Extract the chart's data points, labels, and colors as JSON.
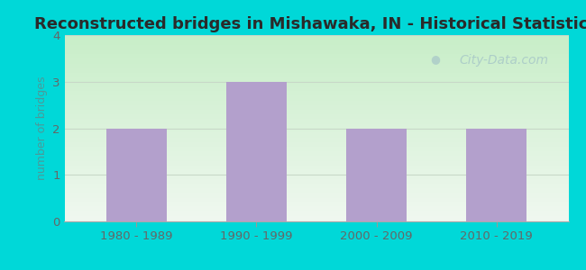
{
  "title": "Reconstructed bridges in Mishawaka, IN - Historical Statistics",
  "categories": [
    "1980 - 1989",
    "1990 - 1999",
    "2000 - 2009",
    "2010 - 2019"
  ],
  "values": [
    2,
    3,
    2,
    2
  ],
  "bar_color": "#b3a0cc",
  "ylabel": "number of bridges",
  "ylim": [
    0,
    4
  ],
  "yticks": [
    0,
    1,
    2,
    3,
    4
  ],
  "background_outer": "#00d8d8",
  "background_top": "#f0f8f0",
  "background_bottom": "#c8eec8",
  "grid_color": "#c8d8c8",
  "title_color": "#2a2a2a",
  "axis_label_color": "#4a9a9a",
  "tick_label_color": "#666666",
  "watermark_text": "City-Data.com",
  "title_fontsize": 13,
  "ylabel_fontsize": 9,
  "tick_fontsize": 9.5,
  "bar_width": 0.5
}
